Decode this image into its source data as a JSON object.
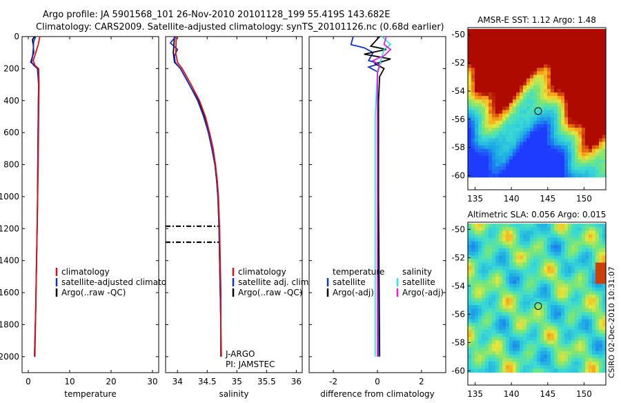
{
  "header": {
    "line1": "Argo profile: JA 5901568_101 26-Nov-2010 20101128_199 55.419S 143.682E",
    "line2": "Climatology: CARS2009. Satellite-adjusted climatology: synTS_20101126.nc (0.68d earlier)"
  },
  "credit": "CSIRO 02-Dec-2010 10:31:07",
  "colors": {
    "red": "#e01010",
    "blue": "#1030d0",
    "black": "#000000",
    "cyan": "#30e0e8",
    "magenta": "#e020e0"
  },
  "chart_data": [
    {
      "type": "line",
      "name": "temperature-profile",
      "xlabel": "temperature",
      "ylabel": "",
      "xlim": [
        -1.5,
        31.5
      ],
      "ylim": [
        0,
        2100
      ],
      "x_ticks": [
        0,
        10,
        20,
        30
      ],
      "y_ticks": [
        0,
        200,
        400,
        600,
        800,
        1000,
        1200,
        1400,
        1600,
        1800,
        2000
      ],
      "series": [
        {
          "name": "Argo(..raw -QC)",
          "color": "black",
          "points": [
            [
              1.5,
              0
            ],
            [
              1.0,
              20
            ],
            [
              1.2,
              50
            ],
            [
              1.3,
              100
            ],
            [
              0.6,
              160
            ],
            [
              1.5,
              180
            ],
            [
              2.3,
              200
            ],
            [
              2.5,
              300
            ],
            [
              2.4,
              500
            ],
            [
              2.3,
              800
            ],
            [
              2.2,
              1100
            ],
            [
              2.0,
              1400
            ],
            [
              1.8,
              1700
            ],
            [
              1.5,
              2000
            ]
          ]
        },
        {
          "name": "satellite-adjusted climatology",
          "color": "blue",
          "points": [
            [
              1.8,
              0
            ],
            [
              1.3,
              30
            ],
            [
              1.2,
              80
            ],
            [
              1.0,
              130
            ],
            [
              0.8,
              160
            ],
            [
              1.3,
              180
            ],
            [
              2.2,
              200
            ],
            [
              2.5,
              300
            ],
            [
              2.4,
              500
            ],
            [
              2.3,
              800
            ],
            [
              2.2,
              1100
            ],
            [
              2.0,
              1400
            ],
            [
              1.8,
              1700
            ],
            [
              1.5,
              2000
            ]
          ]
        },
        {
          "name": "climatology",
          "color": "red",
          "points": [
            [
              2.8,
              0
            ],
            [
              2.4,
              50
            ],
            [
              1.8,
              100
            ],
            [
              1.2,
              150
            ],
            [
              1.6,
              180
            ],
            [
              2.5,
              200
            ],
            [
              2.6,
              300
            ],
            [
              2.5,
              500
            ],
            [
              2.4,
              800
            ],
            [
              2.2,
              1100
            ],
            [
              2.0,
              1400
            ],
            [
              1.8,
              1700
            ],
            [
              1.6,
              2000
            ]
          ]
        }
      ],
      "legend": [
        {
          "label": "climatology",
          "color": "red"
        },
        {
          "label": "satellite-adjusted climatology",
          "color": "blue"
        },
        {
          "label": "Argo(..raw -QC)",
          "color": "black"
        }
      ]
    },
    {
      "type": "line",
      "name": "salinity-profile",
      "xlabel": "salinity",
      "xlim": [
        33.8,
        36.1
      ],
      "ylim": [
        0,
        2100
      ],
      "x_ticks": [
        34,
        34.5,
        35,
        35.5,
        36
      ],
      "series": [
        {
          "name": "Argo(..raw -QC)",
          "color": "black",
          "points": [
            [
              33.95,
              0
            ],
            [
              33.93,
              100
            ],
            [
              33.95,
              160
            ],
            [
              34.05,
              200
            ],
            [
              34.2,
              300
            ],
            [
              34.35,
              400
            ],
            [
              34.45,
              500
            ],
            [
              34.52,
              600
            ],
            [
              34.58,
              700
            ],
            [
              34.63,
              800
            ],
            [
              34.66,
              900
            ],
            [
              34.68,
              1000
            ],
            [
              34.7,
              1200
            ],
            [
              34.71,
              1400
            ],
            [
              34.72,
              1600
            ],
            [
              34.73,
              1800
            ],
            [
              34.73,
              2000
            ]
          ]
        },
        {
          "name": "satellite adj. clim.",
          "color": "blue",
          "points": [
            [
              33.97,
              0
            ],
            [
              33.88,
              40
            ],
            [
              34.0,
              80
            ],
            [
              33.95,
              120
            ],
            [
              33.96,
              160
            ],
            [
              34.05,
              200
            ],
            [
              34.2,
              300
            ],
            [
              34.34,
              400
            ],
            [
              34.44,
              500
            ],
            [
              34.52,
              600
            ],
            [
              34.58,
              700
            ],
            [
              34.63,
              800
            ],
            [
              34.66,
              900
            ],
            [
              34.68,
              1000
            ],
            [
              34.7,
              1200
            ],
            [
              34.71,
              1400
            ],
            [
              34.72,
              1600
            ],
            [
              34.73,
              1800
            ],
            [
              34.73,
              2000
            ]
          ]
        },
        {
          "name": "climatology",
          "color": "red",
          "points": [
            [
              33.98,
              0
            ],
            [
              33.97,
              100
            ],
            [
              34.0,
              160
            ],
            [
              34.08,
              200
            ],
            [
              34.23,
              300
            ],
            [
              34.37,
              400
            ],
            [
              34.47,
              500
            ],
            [
              34.54,
              600
            ],
            [
              34.6,
              700
            ],
            [
              34.64,
              800
            ],
            [
              34.67,
              900
            ],
            [
              34.69,
              1000
            ],
            [
              34.71,
              1200
            ],
            [
              34.72,
              1400
            ],
            [
              34.73,
              1600
            ],
            [
              34.73,
              1800
            ],
            [
              34.74,
              2000
            ]
          ]
        }
      ],
      "dashed_levels": [
        1185,
        1285
      ],
      "legend": [
        {
          "label": "climatology",
          "color": "red"
        },
        {
          "label": "satellite adj. clim.",
          "color": "blue"
        },
        {
          "label": "Argo(..raw -QC)",
          "color": "black"
        }
      ],
      "annotation": [
        "J-ARGO",
        "PI: JAMSTEC"
      ]
    },
    {
      "type": "line",
      "name": "difference-profile",
      "xlabel": "difference from climatology",
      "xlim": [
        -3.1,
        3.1
      ],
      "ylim": [
        0,
        2100
      ],
      "x_ticks": [
        -2,
        0,
        2
      ],
      "x_tick_labels": [
        "-2",
        "0",
        "2"
      ],
      "series": [
        {
          "name": "temperature satellite",
          "color": "blue",
          "points": [
            [
              -1.1,
              0
            ],
            [
              -1.2,
              50
            ],
            [
              -0.6,
              70
            ],
            [
              -0.2,
              100
            ],
            [
              -0.4,
              150
            ],
            [
              0.1,
              170
            ],
            [
              -0.4,
              190
            ],
            [
              0,
              220
            ],
            [
              0,
              400
            ],
            [
              0.02,
              1000
            ],
            [
              0.03,
              2000
            ]
          ]
        },
        {
          "name": "temperature Argo(-adj)",
          "color": "black",
          "points": [
            [
              0.1,
              0
            ],
            [
              -0.3,
              60
            ],
            [
              0.4,
              80
            ],
            [
              -0.6,
              110
            ],
            [
              0.6,
              140
            ],
            [
              -0.1,
              170
            ],
            [
              0.3,
              200
            ],
            [
              0.1,
              250
            ],
            [
              0.05,
              400
            ],
            [
              0.05,
              1000
            ],
            [
              0.1,
              2000
            ]
          ]
        },
        {
          "name": "salinity satellite",
          "color": "cyan",
          "points": [
            [
              0.2,
              0
            ],
            [
              0.6,
              50
            ],
            [
              0.3,
              80
            ],
            [
              0.2,
              130
            ],
            [
              0.1,
              170
            ],
            [
              0,
              220
            ],
            [
              -0.1,
              500
            ],
            [
              -0.1,
              1000
            ],
            [
              -0.1,
              2000
            ]
          ]
        },
        {
          "name": "salinity Argo(-adj)",
          "color": "magenta",
          "points": [
            [
              0.4,
              0
            ],
            [
              0.3,
              50
            ],
            [
              0.6,
              80
            ],
            [
              0.3,
              120
            ],
            [
              -0.2,
              150
            ],
            [
              0.1,
              180
            ],
            [
              0,
              230
            ],
            [
              0,
              500
            ],
            [
              0,
              1000
            ],
            [
              0,
              2000
            ]
          ]
        }
      ],
      "legend": [
        {
          "label": "temperature",
          "color": ""
        },
        {
          "label": "satellite",
          "color": "blue"
        },
        {
          "label": "Argo(-adj)",
          "color": "black"
        },
        {
          "label": "salinity",
          "color": ""
        },
        {
          "label": "satellite",
          "color": "cyan"
        },
        {
          "label": "Argo(-adj)",
          "color": "magenta"
        }
      ]
    },
    {
      "type": "heatmap",
      "name": "sst-map",
      "title": "AMSR-E SST: 1.12 Argo: 1.48",
      "xlim": [
        134,
        153
      ],
      "ylim": [
        -61,
        -49.5
      ],
      "x_ticks": [
        135,
        140,
        145,
        150
      ],
      "y_ticks": [
        -50,
        -52,
        -54,
        -56,
        -58,
        -60
      ],
      "marker": [
        143.682,
        -55.419
      ]
    },
    {
      "type": "heatmap",
      "name": "sla-map",
      "title": "Altimetric SLA: 0.056 Argo: 0.015",
      "xlim": [
        134,
        153
      ],
      "ylim": [
        -61,
        -49.5
      ],
      "x_ticks": [
        135,
        140,
        145,
        150
      ],
      "y_ticks": [
        -50,
        -52,
        -54,
        -56,
        -58,
        -60
      ],
      "marker": [
        143.682,
        -55.419
      ]
    }
  ]
}
